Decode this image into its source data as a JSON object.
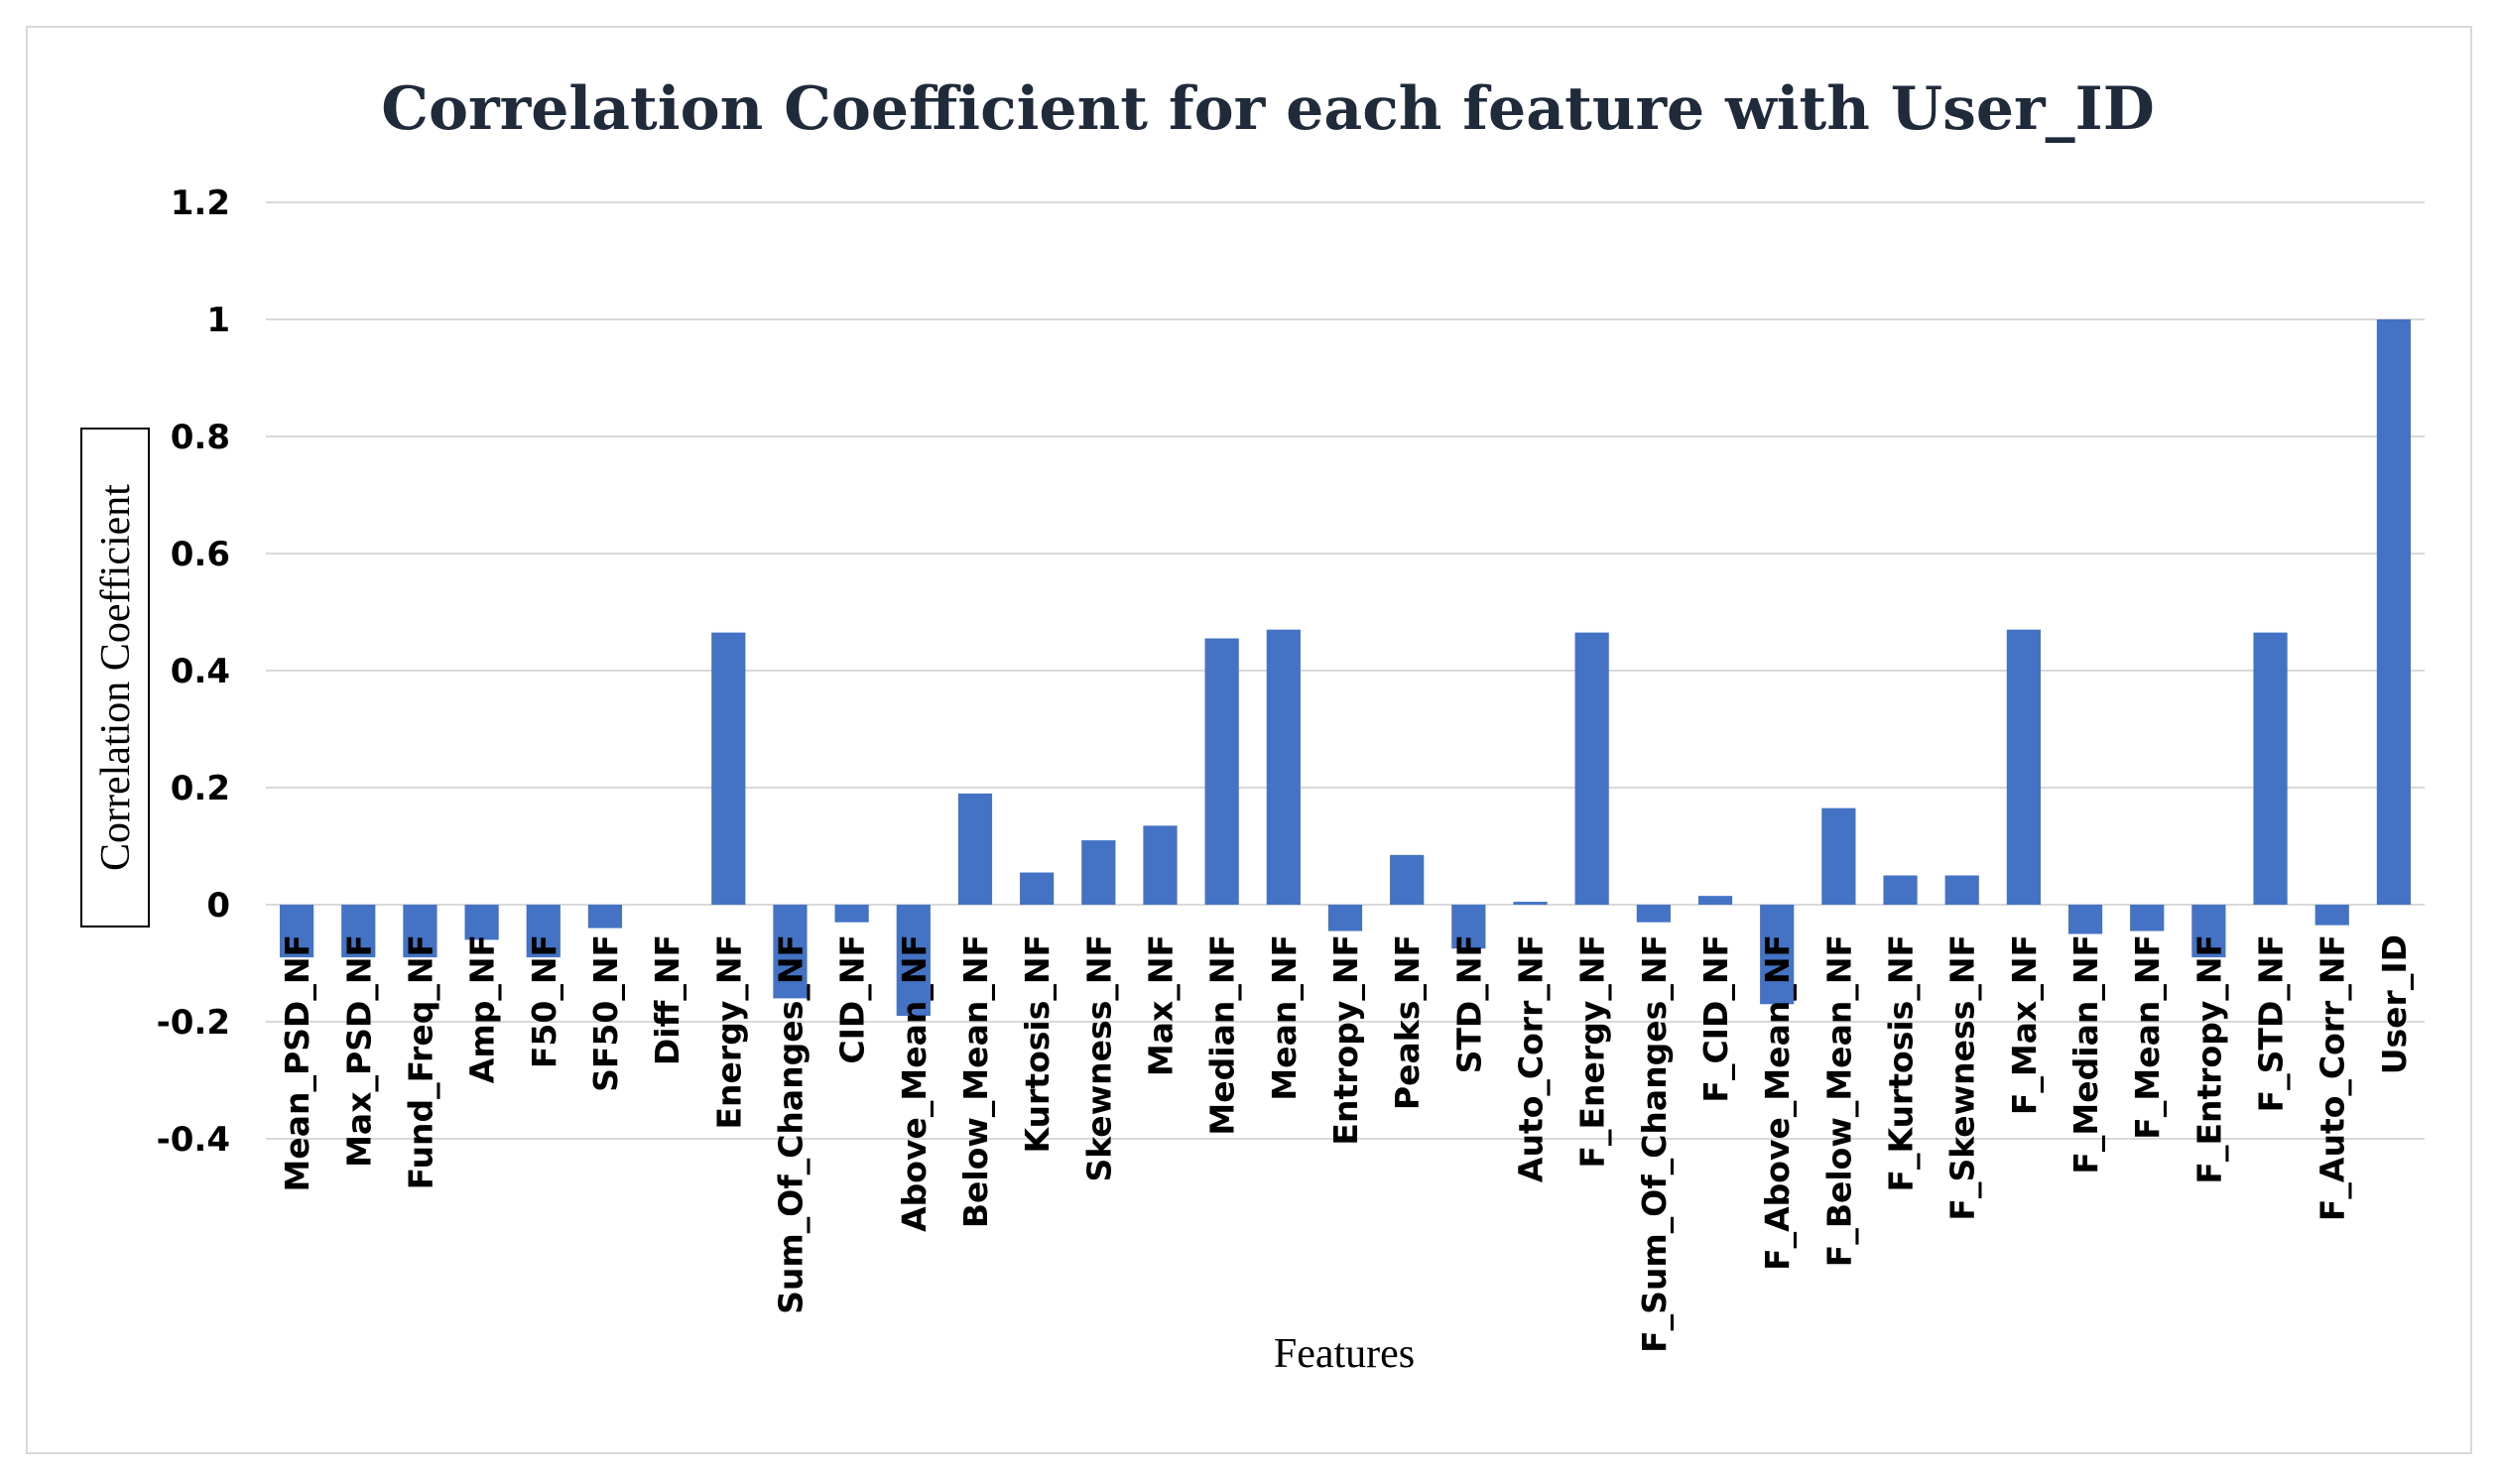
{
  "chart_data": {
    "type": "bar",
    "title": "Correlation Coefficient for each feature with User_ID",
    "xlabel": "Features",
    "ylabel": "Correlation Coefficient",
    "ylim": [
      -0.4,
      1.2
    ],
    "yticks": [
      1.2,
      1,
      0.8,
      0.6,
      0.4,
      0.2,
      0,
      -0.2,
      -0.4
    ],
    "ytick_labels": [
      "1.2",
      "1",
      "0.8",
      "0.6",
      "0.4",
      "0.2",
      "0",
      "-0.2",
      "-0.4"
    ],
    "grid": true,
    "bar_color": "#4472c4",
    "categories": [
      "Mean_PSD_NF",
      "Max_PSD_NF",
      "Fund_Freq_NF",
      "Amp_NF",
      "F50_NF",
      "SF50_NF",
      "Diff_NF",
      "Energy_NF",
      "Sum_Of_Changes_NF",
      "CID_NF",
      "Above_Mean_NF",
      "Below_Mean_NF",
      "Kurtosis_NF",
      "Skewness_NF",
      "Max_NF",
      "Median_NF",
      "Mean_NF",
      "Entropy_NF",
      "Peaks_NF",
      "STD_NF",
      "Auto_Corr_NF",
      "F_Energy_NF",
      "F_Sum_Of_Changes_NF",
      "F_CID_NF",
      "F_Above_Mean_NF",
      "F_Below_Mean_NF",
      "F_Kurtosis_NF",
      "F_Skewness_NF",
      "F_Max_NF",
      "F_Median_NF",
      "F_Mean_NF",
      "F_Entropy_NF",
      "F_STD_NF",
      "F_Auto_Corr_NF",
      "User_ID"
    ],
    "values": [
      -0.09,
      -0.09,
      -0.09,
      -0.06,
      -0.09,
      -0.04,
      0,
      0.465,
      -0.16,
      -0.03,
      -0.19,
      0.19,
      0.055,
      0.11,
      0.135,
      0.455,
      0.47,
      -0.045,
      0.085,
      -0.075,
      0.005,
      0.465,
      -0.03,
      0.015,
      -0.17,
      0.165,
      0.05,
      0.05,
      0.47,
      -0.05,
      -0.045,
      -0.09,
      0.465,
      -0.035,
      1.0
    ]
  }
}
